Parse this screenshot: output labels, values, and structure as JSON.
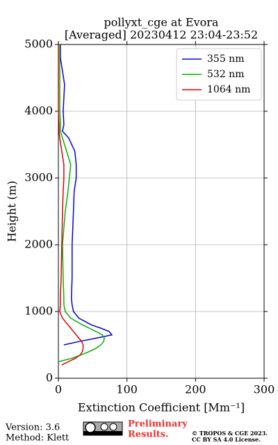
{
  "chart_data": {
    "type": "profile",
    "title": "pollyxt_cge at Evora",
    "subtitle": "[Averaged] 20230412 23:04-23:52",
    "xlabel": "Extinction Coefficient [Mm⁻¹]",
    "ylabel": "Height (m)",
    "y": [
      150,
      200,
      250,
      300,
      350,
      400,
      450,
      500,
      550,
      600,
      650,
      700,
      750,
      800,
      900,
      1000,
      1100,
      1200,
      1500,
      2000,
      2500,
      2800,
      3000,
      3200,
      3400,
      3600,
      3700,
      3800,
      4000,
      4200,
      4400,
      4600,
      4800,
      5000
    ],
    "series": [
      {
        "name": "355 nm",
        "color": "#0000dd",
        "values": [
          null,
          null,
          null,
          null,
          null,
          null,
          null,
          8,
          30,
          55,
          78,
          74,
          62,
          48,
          30,
          22,
          20,
          19,
          20,
          20,
          22,
          23,
          26,
          26,
          24,
          15,
          6,
          8,
          7,
          8,
          9,
          6,
          3,
          3
        ]
      },
      {
        "name": "532 nm",
        "color": "#00b000",
        "values": [
          null,
          null,
          1,
          20,
          33,
          45,
          55,
          62,
          66,
          67,
          64,
          55,
          45,
          35,
          18,
          10,
          8,
          8,
          7,
          6,
          10,
          14,
          16,
          18,
          12,
          6,
          3,
          3,
          2,
          2,
          2,
          2,
          2,
          2
        ]
      },
      {
        "name": "1064 nm",
        "color": "#dd0000",
        "values": [
          null,
          5,
          15,
          25,
          32,
          35,
          36,
          36,
          34,
          30,
          26,
          22,
          18,
          14,
          6,
          2,
          3,
          3,
          4,
          5,
          6,
          7,
          8,
          8,
          5,
          2,
          1,
          1,
          0,
          0,
          0,
          0,
          0,
          0
        ]
      }
    ],
    "xlim": [
      0,
      300
    ],
    "xticks": [
      0,
      100,
      200,
      300
    ],
    "ylim": [
      0,
      5000
    ],
    "yticks": [
      0,
      1000,
      2000,
      3000,
      4000,
      5000
    ],
    "grid": true,
    "legend": "upper right"
  },
  "footer": {
    "version": "Version: 3.6",
    "method": "Method: Klett",
    "notice": [
      "Preliminary",
      "Results."
    ],
    "copyright": [
      "© TROPOS & CGE 2023.",
      "CC BY SA 4.0 License."
    ]
  }
}
